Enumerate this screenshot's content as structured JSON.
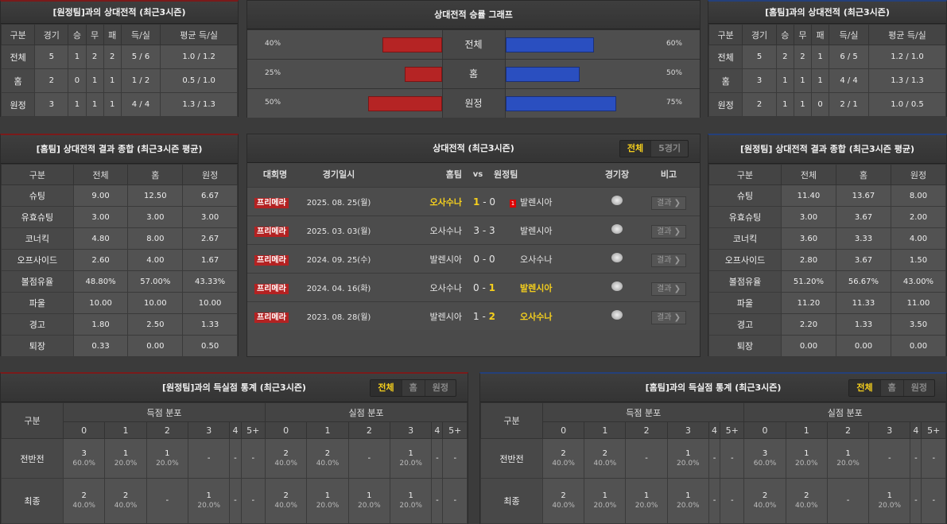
{
  "away_h2h": {
    "title": "[원정팀]과의 상대전적 (최근3시즌)",
    "headers": [
      "구분",
      "경기",
      "승",
      "무",
      "패",
      "득/실",
      "평균 득/실"
    ],
    "rows": [
      [
        "전체",
        "5",
        "1",
        "2",
        "2",
        "5 / 6",
        "1.0 / 1.2"
      ],
      [
        "홈",
        "2",
        "0",
        "1",
        "1",
        "1 / 2",
        "0.5 / 1.0"
      ],
      [
        "원정",
        "3",
        "1",
        "1",
        "1",
        "4 / 4",
        "1.3 / 1.3"
      ]
    ]
  },
  "home_h2h": {
    "title": "[홈팀]과의 상대전적 (최근3시즌)",
    "headers": [
      "구분",
      "경기",
      "승",
      "무",
      "패",
      "득/실",
      "평균 득/실"
    ],
    "rows": [
      [
        "전체",
        "5",
        "2",
        "2",
        "1",
        "6 / 5",
        "1.2 / 1.0"
      ],
      [
        "홈",
        "3",
        "1",
        "1",
        "1",
        "4 / 4",
        "1.3 / 1.3"
      ],
      [
        "원정",
        "2",
        "1",
        "1",
        "0",
        "2 / 1",
        "1.0 / 0.5"
      ]
    ]
  },
  "graph": {
    "title": "상대전적 승률 그래프",
    "rows": [
      {
        "label": "전체",
        "left": "40%",
        "left_value": 40,
        "right": "60%",
        "right_value": 60
      },
      {
        "label": "홈",
        "left": "25%",
        "left_value": 25,
        "right": "50%",
        "right_value": 50
      },
      {
        "label": "원정",
        "left": "50%",
        "left_value": 50,
        "right": "75%",
        "right_value": 75
      }
    ],
    "colors": {
      "left": "#b52424",
      "right": "#2a4fc0"
    }
  },
  "home_summary": {
    "title": "[홈팀] 상대전적 결과 종합 (최근3시즌 평균)",
    "headers": [
      "구분",
      "전체",
      "홈",
      "원정"
    ],
    "rows": [
      [
        "슈팅",
        "9.00",
        "12.50",
        "6.67"
      ],
      [
        "유효슈팅",
        "3.00",
        "3.00",
        "3.00"
      ],
      [
        "코너킥",
        "4.80",
        "8.00",
        "2.67"
      ],
      [
        "오프사이드",
        "2.60",
        "4.00",
        "1.67"
      ],
      [
        "볼점유율",
        "48.80%",
        "57.00%",
        "43.33%"
      ],
      [
        "파울",
        "10.00",
        "10.00",
        "10.00"
      ],
      [
        "경고",
        "1.80",
        "2.50",
        "1.33"
      ],
      [
        "퇴장",
        "0.33",
        "0.00",
        "0.50"
      ]
    ]
  },
  "away_summary": {
    "title": "[원정팀] 상대전적 결과 종합 (최근3시즌 평균)",
    "headers": [
      "구분",
      "전체",
      "홈",
      "원정"
    ],
    "rows": [
      [
        "슈팅",
        "11.40",
        "13.67",
        "8.00"
      ],
      [
        "유효슈팅",
        "3.00",
        "3.67",
        "2.00"
      ],
      [
        "코너킥",
        "3.60",
        "3.33",
        "4.00"
      ],
      [
        "오프사이드",
        "2.80",
        "3.67",
        "1.50"
      ],
      [
        "볼점유율",
        "51.20%",
        "56.67%",
        "43.00%"
      ],
      [
        "파울",
        "11.20",
        "11.33",
        "11.00"
      ],
      [
        "경고",
        "2.20",
        "1.33",
        "3.50"
      ],
      [
        "퇴장",
        "0.00",
        "0.00",
        "0.00"
      ]
    ]
  },
  "matches": {
    "title": "상대전적 (최근3시즌)",
    "tabs": [
      "전체",
      "5경기"
    ],
    "headers": {
      "comp": "대회명",
      "date": "경기일시",
      "home": "홈팀",
      "vs": "vs",
      "away": "원정팀",
      "stadium": "경기장",
      "note": "비고"
    },
    "result_label": "결과 ❯",
    "rows": [
      {
        "comp": "프리메라",
        "date": "2025. 08. 25(월)",
        "home": "오사수나",
        "hs": "1",
        "as": "0",
        "away": "발렌시아",
        "winner": "home",
        "red_card": "1"
      },
      {
        "comp": "프리메라",
        "date": "2025. 03. 03(월)",
        "home": "오사수나",
        "hs": "3",
        "as": "3",
        "away": "발렌시아",
        "winner": "draw",
        "red_card": ""
      },
      {
        "comp": "프리메라",
        "date": "2024. 09. 25(수)",
        "home": "발렌시아",
        "hs": "0",
        "as": "0",
        "away": "오사수나",
        "winner": "draw",
        "red_card": ""
      },
      {
        "comp": "프리메라",
        "date": "2024. 04. 16(화)",
        "home": "오사수나",
        "hs": "0",
        "as": "1",
        "away": "발렌시아",
        "winner": "away",
        "red_card": ""
      },
      {
        "comp": "프리메라",
        "date": "2023. 08. 28(월)",
        "home": "발렌시아",
        "hs": "1",
        "as": "2",
        "away": "오사수나",
        "winner": "away",
        "red_card": ""
      }
    ]
  },
  "away_goals": {
    "title": "[원정팀]과의 득실점 통계 (최근3시즌)",
    "tabs": [
      "전체",
      "홈",
      "원정"
    ],
    "col_label": "구분",
    "groups": [
      "득점 분포",
      "실점 분포"
    ],
    "buckets": [
      "0",
      "1",
      "2",
      "3",
      "4",
      "5+",
      "0",
      "1",
      "2",
      "3",
      "4",
      "5+"
    ],
    "rows": [
      {
        "label": "전반전",
        "cells": [
          [
            "3",
            "60.0%"
          ],
          [
            "1",
            "20.0%"
          ],
          [
            "1",
            "20.0%"
          ],
          [
            "-",
            ""
          ],
          [
            "-",
            ""
          ],
          [
            "-",
            ""
          ],
          [
            "2",
            "40.0%"
          ],
          [
            "2",
            "40.0%"
          ],
          [
            "-",
            ""
          ],
          [
            "1",
            "20.0%"
          ],
          [
            "-",
            ""
          ],
          [
            "-",
            ""
          ]
        ]
      },
      {
        "label": "최종",
        "cells": [
          [
            "2",
            "40.0%"
          ],
          [
            "2",
            "40.0%"
          ],
          [
            "-",
            ""
          ],
          [
            "1",
            "20.0%"
          ],
          [
            "-",
            ""
          ],
          [
            "-",
            ""
          ],
          [
            "2",
            "40.0%"
          ],
          [
            "1",
            "20.0%"
          ],
          [
            "1",
            "20.0%"
          ],
          [
            "1",
            "20.0%"
          ],
          [
            "-",
            ""
          ],
          [
            "-",
            ""
          ]
        ]
      }
    ]
  },
  "home_goals": {
    "title": "[홈팀]과의 득실점 통계 (최근3시즌)",
    "tabs": [
      "전체",
      "홈",
      "원정"
    ],
    "col_label": "구분",
    "groups": [
      "득점 분포",
      "실점 분포"
    ],
    "buckets": [
      "0",
      "1",
      "2",
      "3",
      "4",
      "5+",
      "0",
      "1",
      "2",
      "3",
      "4",
      "5+"
    ],
    "rows": [
      {
        "label": "전반전",
        "cells": [
          [
            "2",
            "40.0%"
          ],
          [
            "2",
            "40.0%"
          ],
          [
            "-",
            ""
          ],
          [
            "1",
            "20.0%"
          ],
          [
            "-",
            ""
          ],
          [
            "-",
            ""
          ],
          [
            "3",
            "60.0%"
          ],
          [
            "1",
            "20.0%"
          ],
          [
            "1",
            "20.0%"
          ],
          [
            "-",
            ""
          ],
          [
            "-",
            ""
          ],
          [
            "-",
            ""
          ]
        ]
      },
      {
        "label": "최종",
        "cells": [
          [
            "2",
            "40.0%"
          ],
          [
            "1",
            "20.0%"
          ],
          [
            "1",
            "20.0%"
          ],
          [
            "1",
            "20.0%"
          ],
          [
            "-",
            ""
          ],
          [
            "-",
            ""
          ],
          [
            "2",
            "40.0%"
          ],
          [
            "2",
            "40.0%"
          ],
          [
            "-",
            ""
          ],
          [
            "1",
            "20.0%"
          ],
          [
            "-",
            ""
          ],
          [
            "-",
            ""
          ]
        ]
      }
    ]
  }
}
